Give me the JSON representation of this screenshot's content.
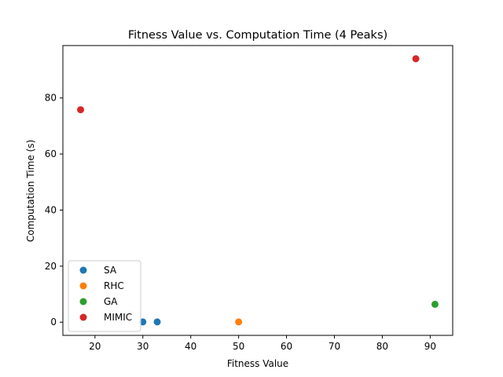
{
  "chart_data": {
    "type": "scatter",
    "title": "Fitness Value vs. Computation Time (4 Peaks)",
    "xlabel": "Fitness Value",
    "ylabel": "Computation Time (s)",
    "xlim": [
      13.3,
      94.7
    ],
    "ylim": [
      -4.7,
      98.7
    ],
    "xticks": [
      20,
      30,
      40,
      50,
      60,
      70,
      80,
      90
    ],
    "yticks": [
      0,
      20,
      40,
      60,
      80
    ],
    "grid": false,
    "legend_position": "lower-left",
    "series": [
      {
        "name": "SA",
        "color": "#1f77b4",
        "points": [
          [
            30,
            0.1
          ],
          [
            33,
            0.1
          ]
        ]
      },
      {
        "name": "RHC",
        "color": "#ff7f0e",
        "points": [
          [
            50,
            0.1
          ]
        ]
      },
      {
        "name": "GA",
        "color": "#2ca02c",
        "points": [
          [
            91,
            6.4
          ]
        ]
      },
      {
        "name": "MIMIC",
        "color": "#d62728",
        "points": [
          [
            17,
            75.8
          ],
          [
            87,
            94.0
          ]
        ]
      }
    ]
  }
}
